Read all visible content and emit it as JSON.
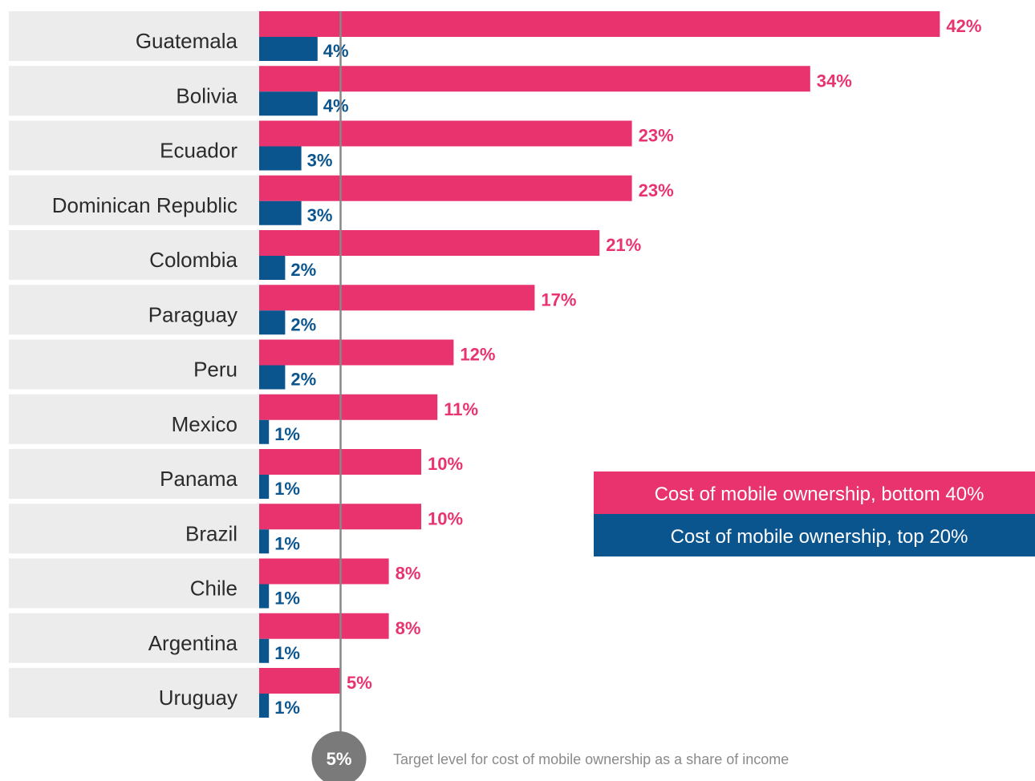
{
  "colors": {
    "bottom40": "#e8336e",
    "top20": "#0b558f",
    "label_bg": "#ececec",
    "target_line": "#888888",
    "target_marker": "#7a7a7a"
  },
  "legend": {
    "bottom40": "Cost of mobile ownership, bottom 40%",
    "top20": "Cost of mobile ownership, top 20%"
  },
  "target": {
    "value_label": "5%",
    "note": "Target level for cost of mobile ownership as a share of income"
  },
  "chart_data": {
    "type": "bar",
    "orientation": "horizontal",
    "categories": [
      "Guatemala",
      "Bolivia",
      "Ecuador",
      "Dominican Republic",
      "Colombia",
      "Paraguay",
      "Peru",
      "Mexico",
      "Panama",
      "Brazil",
      "Chile",
      "Argentina",
      "Uruguay"
    ],
    "series": [
      {
        "name": "Cost of mobile ownership, bottom 40%",
        "values": [
          42,
          34,
          23,
          23,
          21,
          17,
          12,
          11,
          10,
          10,
          8,
          8,
          5
        ],
        "labels": [
          "42%",
          "34%",
          "23%",
          "23%",
          "21%",
          "17%",
          "12%",
          "11%",
          "10%",
          "10%",
          "8%",
          "8%",
          "5%"
        ]
      },
      {
        "name": "Cost of mobile ownership, top 20%",
        "values": [
          4,
          4,
          3,
          3,
          2,
          2,
          2,
          1,
          1,
          1,
          1,
          1,
          1
        ],
        "labels": [
          "4%",
          "4%",
          "3%",
          "3%",
          "2%",
          "2%",
          "2%",
          "1%",
          "1%",
          "1%",
          "1%",
          "1%",
          "1%"
        ]
      }
    ],
    "reference_line": {
      "value": 5,
      "label": "5%"
    },
    "xlim": [
      0,
      42
    ],
    "grid": false,
    "legend_position": "right-middle"
  }
}
